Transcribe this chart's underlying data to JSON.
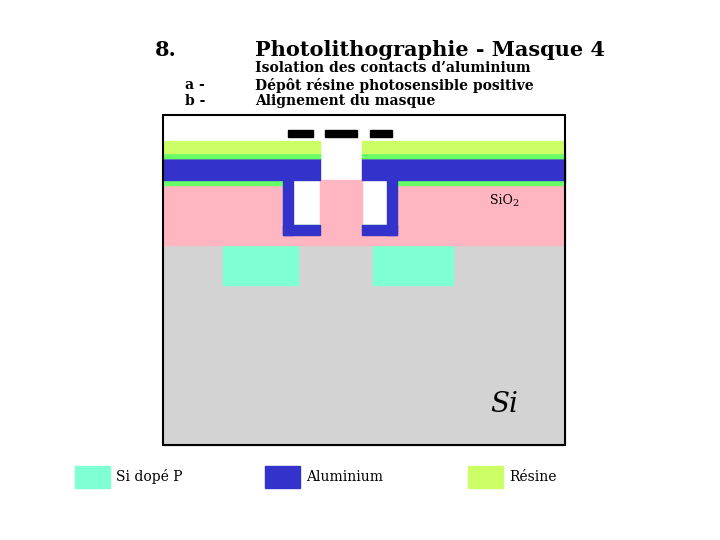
{
  "title_number": "8.",
  "title_text": "Photolithographie - Masque 4",
  "subtitle": "Isolation des contacts d’aluminium",
  "item_a": "a -",
  "item_a_text": "Dépôt résine photosensible positive",
  "item_b": "b -",
  "item_b_text": "Alignement du masque",
  "color_si": "#d3d3d3",
  "color_si_dope": "#7fffd4",
  "color_sio2": "#ffb6c1",
  "color_alu": "#3333cc",
  "color_resine": "#ccff66",
  "color_green_line": "#66ff66",
  "legend_si_dope_label": "Si dopé P",
  "legend_alu_label": "Aluminium",
  "legend_resine_label": "Résine",
  "si_label": "Si",
  "background": "#ffffff"
}
